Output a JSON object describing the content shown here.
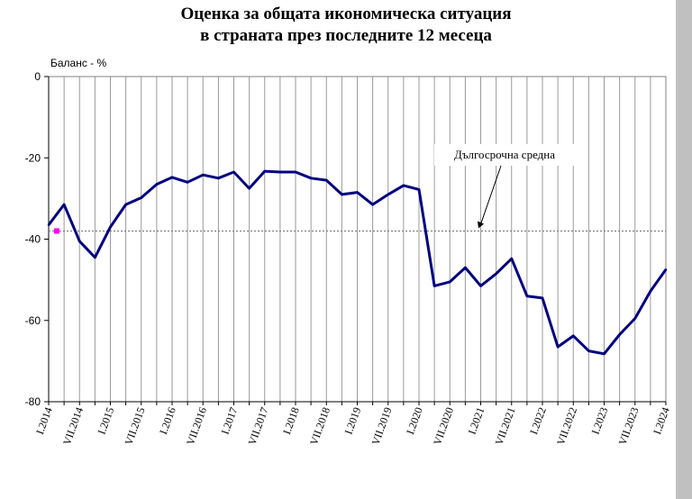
{
  "chart_data": {
    "type": "line",
    "title_line1": "Оценка за общата икономическа ситуация",
    "title_line2": "в страната през последните 12 месеца",
    "ylabel": "Баланс - %",
    "ylim": [
      -80,
      0
    ],
    "yticks": [
      0,
      -20,
      -40,
      -60,
      -80
    ],
    "grid": "vertical",
    "category_labels": [
      "I.2014",
      "VII.2014",
      "I.2015",
      "VII.2015",
      "I.2016",
      "VII.2016",
      "I.2017",
      "VII.2017",
      "I.2018",
      "VII.2018",
      "I.2019",
      "VII.2019",
      "I.2020",
      "VII.2020",
      "I.2021",
      "VII.2021",
      "I.2022",
      "VII.2022",
      "I.2023",
      "VII.2023",
      "I.2024"
    ],
    "series": [
      {
        "color": "#000080",
        "values": [
          -36.5,
          -31.5,
          -40.5,
          -44.5,
          -37.0,
          -31.5,
          -29.8,
          -26.5,
          -24.8,
          -26.0,
          -24.2,
          -25.0,
          -23.5,
          -27.5,
          -23.3,
          -23.5,
          -23.5,
          -25.0,
          -25.5,
          -29.0,
          -28.5,
          -31.5,
          -29.0,
          -26.8,
          -27.8,
          -51.5,
          -50.5,
          -47.0,
          -51.5,
          -48.5,
          -44.8,
          -54.0,
          -54.5,
          -66.5,
          -63.8,
          -67.5,
          -68.2,
          -63.5,
          -59.5,
          -52.8,
          -47.5
        ]
      }
    ],
    "reference_line": {
      "value": -38.0,
      "color": "#808080",
      "label": "Дългосрочна средна"
    },
    "start_marker": {
      "value": -38.0,
      "color": "#ff00ff"
    }
  }
}
